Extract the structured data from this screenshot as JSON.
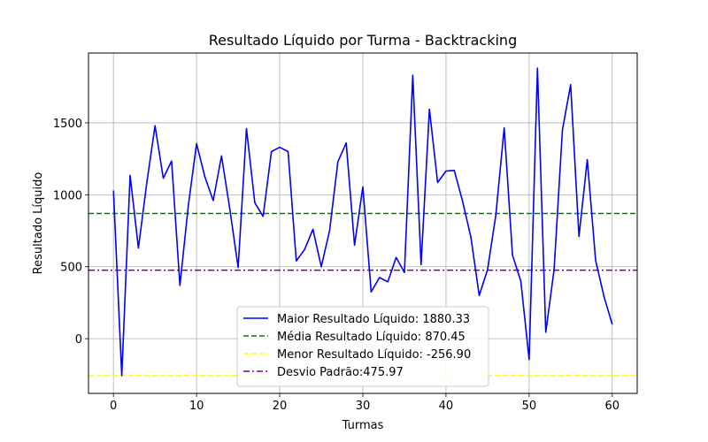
{
  "chart_data": {
    "type": "line",
    "title": "Resultado Líquido por Turma - Backtracking",
    "xlabel": "Turmas",
    "ylabel": "Resultado Líquido",
    "xlim": [
      -3,
      63
    ],
    "ylim": [
      -380,
      1985
    ],
    "xticks": [
      0,
      10,
      20,
      30,
      40,
      50,
      60
    ],
    "yticks": [
      0,
      500,
      1000,
      1500
    ],
    "grid": true,
    "legend_position": "lower center",
    "series": [
      {
        "name": "Maior Resultado Líquido: 1880.33",
        "color": "#0000ff",
        "style": "solid",
        "x": [
          0,
          1,
          2,
          3,
          4,
          5,
          6,
          7,
          8,
          9,
          10,
          11,
          12,
          13,
          14,
          15,
          16,
          17,
          18,
          19,
          20,
          21,
          22,
          23,
          24,
          25,
          26,
          27,
          28,
          29,
          30,
          31,
          32,
          33,
          34,
          35,
          36,
          37,
          38,
          39,
          40,
          41,
          42,
          43,
          44,
          45,
          46,
          47,
          48,
          49,
          50,
          51,
          52,
          53,
          54,
          55,
          56,
          57,
          58,
          59,
          60
        ],
        "y": [
          1030,
          -257,
          1135,
          630,
          1080,
          1480,
          1115,
          1235,
          370,
          920,
          1355,
          1125,
          960,
          1270,
          900,
          495,
          1460,
          945,
          850,
          1300,
          1330,
          1300,
          540,
          620,
          760,
          500,
          750,
          1230,
          1360,
          650,
          1055,
          325,
          425,
          395,
          565,
          460,
          1830,
          515,
          1595,
          1085,
          1165,
          1170,
          955,
          705,
          300,
          480,
          860,
          1465,
          580,
          400,
          -145,
          1880,
          45,
          480,
          1450,
          1765,
          710,
          1245,
          545,
          295,
          100
        ]
      }
    ],
    "reference_lines": [
      {
        "name": "Média Resultado Líquido: 870.45",
        "value": 870.45,
        "color": "#008000",
        "style": "dashed"
      },
      {
        "name": "Menor Resultado Líquido: -256.90",
        "value": -256.9,
        "color": "#ffff00",
        "style": "dashed"
      },
      {
        "name": "Desvio Padrão:475.97",
        "value": 475.97,
        "color": "#800080",
        "style": "dashdot"
      }
    ]
  }
}
